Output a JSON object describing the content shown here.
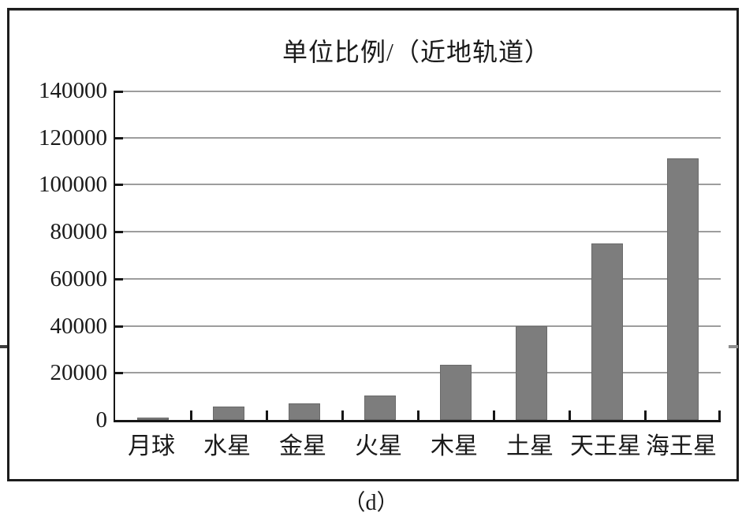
{
  "figure": {
    "caption": "（d）"
  },
  "chart_data": {
    "type": "bar",
    "title": "单位比例/（近地轨道）",
    "categories": [
      "月球",
      "水星",
      "金星",
      "火星",
      "木星",
      "土星",
      "天王星",
      "海王星"
    ],
    "values": [
      900,
      5800,
      7000,
      10500,
      23500,
      40000,
      75000,
      111200
    ],
    "xlabel": "",
    "ylabel": "",
    "ylim": [
      0,
      140000
    ],
    "ytick_interval": 20000,
    "ytick_labels": [
      "0",
      "20000",
      "40000",
      "60000",
      "80000",
      "100000",
      "120000",
      "140000"
    ],
    "grid": true,
    "legend": false,
    "bar_color": "#7d7d7d",
    "bar_edge_color": "#6a6a6a",
    "axis_color": "#161616",
    "grid_color": "#9d9d9d",
    "text_color": "#1a1a1a"
  }
}
